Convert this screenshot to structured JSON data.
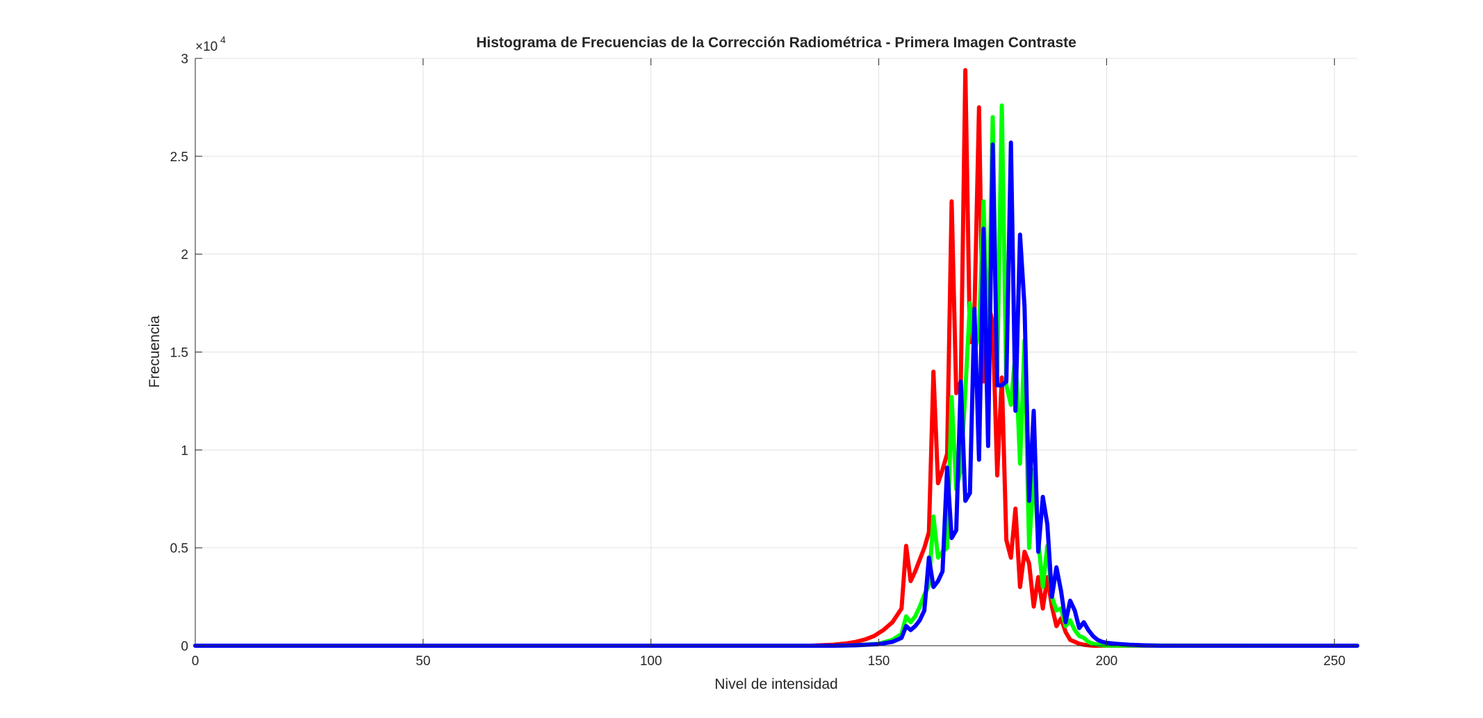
{
  "chart_data": {
    "type": "line",
    "title": "Histograma de Frecuencias de la Corrección Radiométrica - Primera Imagen Contraste",
    "xlabel": "Nivel de intensidad",
    "ylabel": "Frecuencia",
    "y_exponent_label": "×10",
    "y_exponent_power": "4",
    "xlim": [
      0,
      255
    ],
    "ylim": [
      0,
      30000
    ],
    "xticks": [
      0,
      50,
      100,
      150,
      200,
      250
    ],
    "xtick_labels": [
      "0",
      "50",
      "100",
      "150",
      "200",
      "250"
    ],
    "yticks": [
      0,
      5000,
      10000,
      15000,
      20000,
      25000,
      30000
    ],
    "ytick_labels": [
      "0",
      "0.5",
      "1",
      "1.5",
      "2",
      "2.5",
      "3"
    ],
    "grid": true,
    "legend": "none",
    "series": [
      {
        "color": "#ff0000",
        "x": [
          0,
          135,
          140,
          143,
          145,
          147,
          149,
          151,
          153,
          155,
          156,
          157,
          158,
          159,
          160,
          161,
          162,
          163,
          164,
          165,
          166,
          167,
          168,
          169,
          170,
          171,
          172,
          173,
          174,
          175,
          176,
          177,
          178,
          179,
          180,
          181,
          182,
          183,
          184,
          185,
          186,
          187,
          188,
          189,
          190,
          191,
          192,
          193,
          194,
          195,
          196,
          197,
          255
        ],
        "y": [
          0,
          0,
          50,
          120,
          200,
          320,
          500,
          800,
          1200,
          1900,
          5100,
          3300,
          3800,
          4400,
          5000,
          5800,
          14000,
          8300,
          9000,
          9800,
          22700,
          12900,
          13500,
          29400,
          15500,
          17000,
          27500,
          13500,
          17500,
          16500,
          8700,
          13700,
          5400,
          4500,
          7000,
          3000,
          4800,
          4200,
          2000,
          3500,
          1900,
          3500,
          2000,
          1000,
          1400,
          700,
          300,
          200,
          100,
          50,
          20,
          0,
          0
        ]
      },
      {
        "color": "#00ff00",
        "x": [
          0,
          140,
          145,
          150,
          153,
          155,
          156,
          157,
          158,
          159,
          160,
          161,
          162,
          163,
          164,
          165,
          166,
          167,
          168,
          169,
          170,
          171,
          172,
          173,
          174,
          175,
          176,
          177,
          178,
          179,
          180,
          181,
          182,
          183,
          184,
          185,
          186,
          187,
          188,
          189,
          190,
          191,
          192,
          193,
          194,
          195,
          196,
          197,
          198,
          199,
          200,
          255
        ],
        "y": [
          0,
          0,
          30,
          100,
          300,
          600,
          1500,
          1200,
          1500,
          2000,
          2600,
          3100,
          6600,
          4500,
          4800,
          5000,
          12700,
          8000,
          9000,
          13000,
          17500,
          15000,
          16000,
          22700,
          14500,
          27000,
          14000,
          27600,
          13300,
          12300,
          15000,
          9300,
          15600,
          5000,
          9000,
          5400,
          3000,
          5100,
          2500,
          1800,
          1900,
          1000,
          1300,
          800,
          500,
          400,
          200,
          100,
          60,
          30,
          10,
          0
        ]
      },
      {
        "color": "#0000ff",
        "x": [
          0,
          140,
          145,
          150,
          153,
          155,
          156,
          157,
          158,
          159,
          160,
          161,
          162,
          163,
          164,
          165,
          166,
          167,
          168,
          169,
          170,
          171,
          172,
          173,
          174,
          175,
          176,
          177,
          178,
          179,
          180,
          181,
          182,
          183,
          184,
          185,
          186,
          187,
          188,
          189,
          190,
          191,
          192,
          193,
          194,
          195,
          196,
          197,
          198,
          199,
          200,
          202,
          205,
          208,
          212,
          255
        ],
        "y": [
          0,
          0,
          20,
          80,
          200,
          400,
          1000,
          800,
          1000,
          1300,
          1800,
          4500,
          3000,
          3300,
          3800,
          9100,
          5500,
          5900,
          13500,
          7400,
          7800,
          17200,
          9500,
          21300,
          10200,
          25600,
          13300,
          13300,
          13500,
          25700,
          12000,
          21000,
          17300,
          7400,
          12000,
          4800,
          7600,
          6200,
          2500,
          4000,
          2800,
          1200,
          2300,
          1800,
          900,
          1200,
          800,
          500,
          300,
          200,
          150,
          100,
          50,
          20,
          0,
          0
        ]
      }
    ]
  }
}
